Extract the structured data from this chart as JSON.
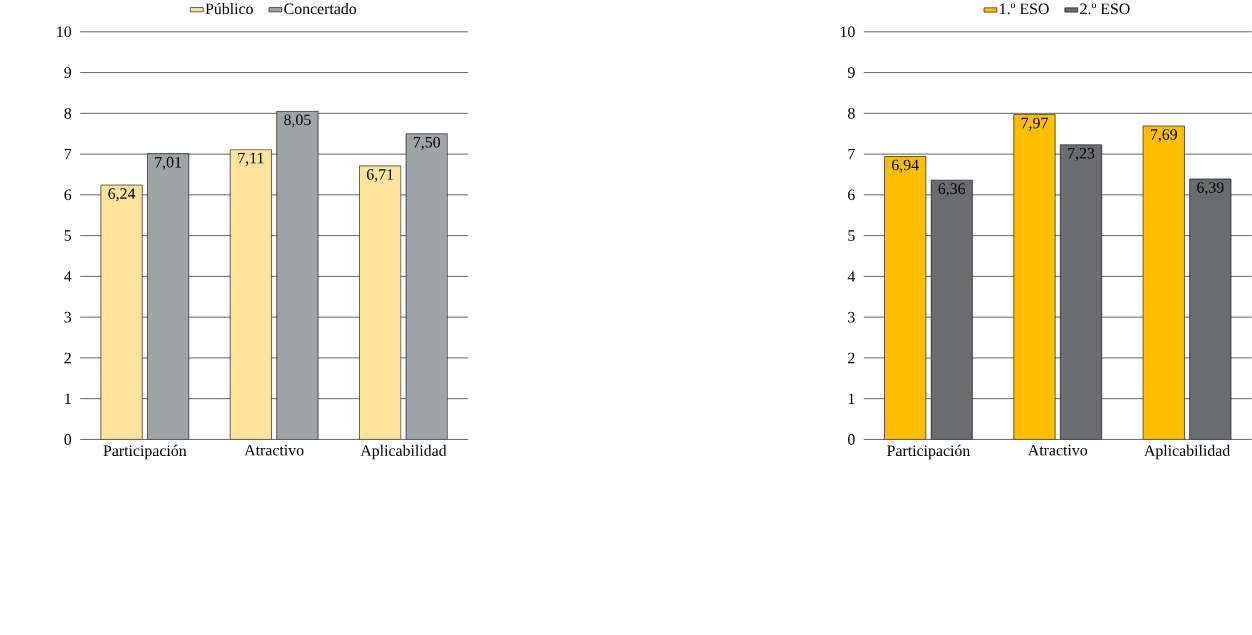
{
  "chart_data": [
    {
      "type": "bar",
      "categories": [
        "Participación",
        "Atractivo",
        "Aplicabilidad"
      ],
      "series": [
        {
          "name": "Público",
          "color": "#fde39c",
          "values": [
            6.24,
            7.11,
            6.71
          ],
          "value_labels": [
            "6,24",
            "7,11",
            "6,71"
          ]
        },
        {
          "name": "Concertado",
          "color": "#9fa4a7",
          "values": [
            7.01,
            8.05,
            7.5
          ],
          "value_labels": [
            "7,01",
            "8,05",
            "7,50"
          ]
        }
      ],
      "ylim": [
        0,
        10
      ],
      "yticks": [
        0,
        1,
        2,
        3,
        4,
        5,
        6,
        7,
        8,
        9,
        10
      ],
      "grid": "y",
      "legend": "top"
    },
    {
      "type": "bar",
      "categories": [
        "Participación",
        "Atractivo",
        "Aplicabilidad"
      ],
      "series": [
        {
          "name": "1.º ESO",
          "color": "#ffbf00",
          "values": [
            6.94,
            7.97,
            7.69
          ],
          "value_labels": [
            "6,94",
            "7,97",
            "7,69"
          ]
        },
        {
          "name": "2.º ESO",
          "color": "#6a6c6f",
          "values": [
            6.36,
            7.23,
            6.39
          ],
          "value_labels": [
            "6,36",
            "7,23",
            "6,39"
          ]
        }
      ],
      "ylim": [
        0,
        10
      ],
      "yticks": [
        0,
        1,
        2,
        3,
        4,
        5,
        6,
        7,
        8,
        9,
        10
      ],
      "grid": "y",
      "legend": "top"
    }
  ]
}
